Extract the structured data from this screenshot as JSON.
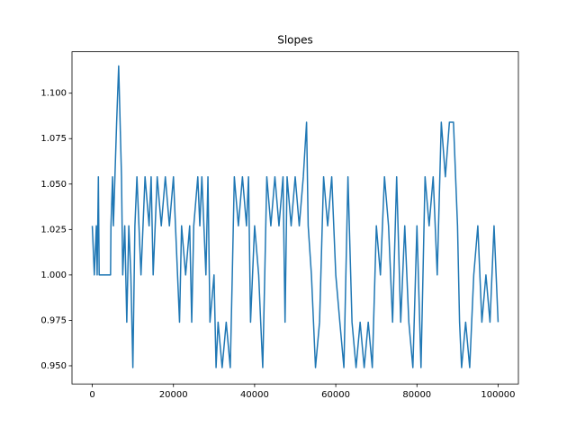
{
  "chart_data": {
    "type": "line",
    "title": "Slopes",
    "color": "#1f77b4",
    "x": [
      0,
      500,
      1000,
      1200,
      1500,
      1700,
      4500,
      4600,
      5000,
      5200,
      6000,
      6500,
      7200,
      7500,
      8000,
      8500,
      9000,
      9500,
      10000,
      10500,
      11000,
      11500,
      12000,
      13000,
      14000,
      14500,
      15000,
      16000,
      17000,
      18000,
      19000,
      20000,
      20500,
      21500,
      22000,
      23000,
      24000,
      24500,
      25000,
      26000,
      26500,
      27000,
      28000,
      28500,
      29000,
      30000,
      30500,
      31000,
      32000,
      33000,
      34000,
      34500,
      35000,
      36000,
      37000,
      38000,
      38500,
      39000,
      40000,
      41000,
      41500,
      42000,
      42500,
      43000,
      44000,
      45000,
      46000,
      47000,
      47500,
      48000,
      49000,
      50000,
      51000,
      52000,
      52800,
      53200,
      54000,
      55000,
      56000,
      57000,
      58000,
      59000,
      60000,
      61000,
      62000,
      63000,
      64000,
      65000,
      66000,
      67000,
      68000,
      69000,
      70000,
      71000,
      72000,
      73000,
      74000,
      75000,
      76000,
      77000,
      78000,
      79000,
      80000,
      81000,
      82000,
      83000,
      84000,
      85000,
      86000,
      87000,
      88000,
      89000,
      90000,
      90500,
      91000,
      92000,
      93000,
      94000,
      95000,
      96000,
      97000,
      98000,
      99000,
      100000
    ],
    "values": [
      1.027,
      1.0,
      1.027,
      1.0,
      1.054,
      1.0,
      1.0,
      1.027,
      1.054,
      1.027,
      1.084,
      1.115,
      1.054,
      1.0,
      1.027,
      0.974,
      1.027,
      1.0,
      0.949,
      1.027,
      1.054,
      1.027,
      1.0,
      1.054,
      1.027,
      1.054,
      1.0,
      1.054,
      1.027,
      1.054,
      1.027,
      1.054,
      1.027,
      0.974,
      1.027,
      1.0,
      1.027,
      0.974,
      1.027,
      1.054,
      1.027,
      1.054,
      1.0,
      1.054,
      0.974,
      1.0,
      0.949,
      0.974,
      0.949,
      0.974,
      0.949,
      1.0,
      1.054,
      1.027,
      1.054,
      1.027,
      1.054,
      0.974,
      1.027,
      1.0,
      0.974,
      0.949,
      1.0,
      1.054,
      1.027,
      1.054,
      1.027,
      1.054,
      0.974,
      1.054,
      1.027,
      1.054,
      1.027,
      1.054,
      1.084,
      1.027,
      1.0,
      0.949,
      0.974,
      1.054,
      1.027,
      1.054,
      1.0,
      0.974,
      0.949,
      1.054,
      0.974,
      0.949,
      0.974,
      0.949,
      0.974,
      0.949,
      1.027,
      1.0,
      1.054,
      1.027,
      0.974,
      1.054,
      0.974,
      1.027,
      0.974,
      0.949,
      1.027,
      0.949,
      1.054,
      1.027,
      1.054,
      1.0,
      1.084,
      1.054,
      1.084,
      1.084,
      1.027,
      0.974,
      0.949,
      0.974,
      0.949,
      1.0,
      1.027,
      0.974,
      1.0,
      0.974,
      1.027,
      0.974
    ],
    "xlim": [
      -5000,
      105000
    ],
    "ylim": [
      0.94,
      1.1228
    ],
    "xticks": [
      0,
      20000,
      40000,
      60000,
      80000,
      100000
    ],
    "yticks": [
      {
        "value": 0.95,
        "label": "0.950"
      },
      {
        "value": 0.975,
        "label": "0.975"
      },
      {
        "value": 1.0,
        "label": "1.000"
      },
      {
        "value": 1.025,
        "label": "1.025"
      },
      {
        "value": 1.05,
        "label": "1.050"
      },
      {
        "value": 1.075,
        "label": "1.075"
      },
      {
        "value": 1.1,
        "label": "1.100"
      }
    ],
    "grid": false
  }
}
